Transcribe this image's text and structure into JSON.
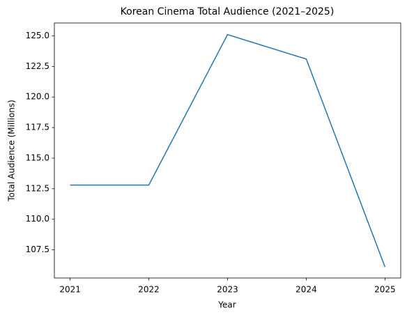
{
  "chart_data": {
    "type": "line",
    "title": "Korean Cinema Total Audience (2021–2025)",
    "x_label": "Year",
    "y_label": "Total Audience (Millions)",
    "x": [
      2021,
      2022,
      2023,
      2024,
      2025
    ],
    "values": [
      112.8,
      112.8,
      125.1,
      123.1,
      106.1
    ],
    "color": "#1f77b4",
    "xlim": [
      2020.8,
      2025.2
    ],
    "xticks": [
      2021,
      2022,
      2023,
      2024,
      2025
    ],
    "ylim": [
      105.2,
      126.05
    ],
    "yticks": [
      107.5,
      {
        "value": 110,
        "label": "110.0"
      },
      112.5,
      {
        "value": 115,
        "label": "115.0"
      },
      117.5,
      {
        "value": 120,
        "label": "120.0"
      },
      122.5,
      {
        "value": 125,
        "label": "125.0"
      }
    ],
    "grid": false
  }
}
